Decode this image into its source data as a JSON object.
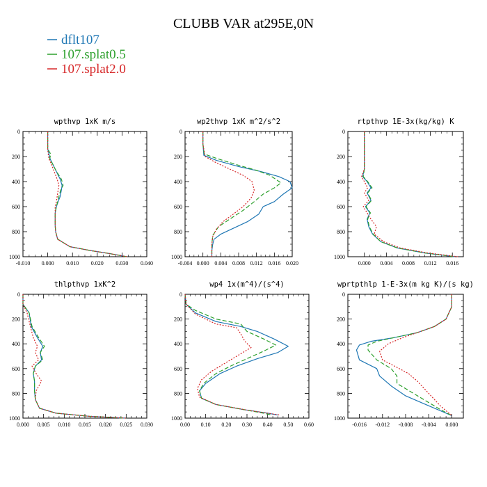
{
  "figure": {
    "title": "CLUBB VAR at295E,0N"
  },
  "legend": [
    {
      "label": "dflt107",
      "color": "#1f77b4",
      "dash": ""
    },
    {
      "label": "107.splat0.5",
      "color": "#2ca02c",
      "dash": "6,3"
    },
    {
      "label": "107.splat2.0",
      "color": "#d62728",
      "dash": "2,2"
    }
  ],
  "chart_data": [
    {
      "type": "line",
      "title": "wpthvp  1xK m/s",
      "xlim": [
        -0.01,
        0.04
      ],
      "xticks": [
        -0.01,
        0.0,
        0.01,
        0.02,
        0.03,
        0.04
      ],
      "xtick_labels": [
        "-0.010",
        "0.000",
        "0.010",
        "0.020",
        "0.030",
        "0.040"
      ],
      "ylim": [
        1000,
        0
      ],
      "yticks": [
        0,
        200,
        400,
        600,
        800,
        1000
      ],
      "ytick_labels": [
        "0",
        "200",
        "400",
        "600",
        "800",
        "1000"
      ],
      "series": [
        {
          "name": "dflt107",
          "x": [
            0.0,
            0.0,
            0.0,
            0.0005,
            0.001,
            0.002,
            0.003,
            0.004,
            0.005,
            0.0058,
            0.0055,
            0.005,
            0.0042,
            0.0035,
            0.003,
            0.003,
            0.003,
            0.0032,
            0.004,
            0.009,
            0.017,
            0.025,
            0.032
          ],
          "y": [
            0,
            100,
            140,
            180,
            220,
            260,
            300,
            340,
            380,
            430,
            470,
            520,
            560,
            600,
            650,
            700,
            750,
            800,
            860,
            920,
            950,
            975,
            1000
          ]
        },
        {
          "name": "107.splat0.5",
          "x": [
            0.0,
            0.0,
            0.0,
            0.0012,
            0.0008,
            0.002,
            0.003,
            0.0042,
            0.0055,
            0.0062,
            0.0052,
            0.0045,
            0.004,
            0.0035,
            0.003,
            0.003,
            0.003,
            0.0032,
            0.004,
            0.009,
            0.017,
            0.025,
            0.032
          ],
          "y": [
            0,
            100,
            140,
            180,
            220,
            260,
            300,
            340,
            380,
            430,
            470,
            520,
            560,
            600,
            650,
            700,
            750,
            800,
            860,
            920,
            950,
            975,
            1000
          ]
        },
        {
          "name": "107.splat2.0",
          "x": [
            0.0,
            0.0,
            0.0,
            0.0002,
            0.0005,
            0.0015,
            0.0022,
            0.003,
            0.0038,
            0.0045,
            0.0042,
            0.0038,
            0.0035,
            0.003,
            0.003,
            0.003,
            0.003,
            0.0032,
            0.004,
            0.009,
            0.017,
            0.025,
            0.032
          ],
          "y": [
            0,
            100,
            140,
            180,
            220,
            260,
            300,
            340,
            380,
            430,
            470,
            520,
            560,
            600,
            650,
            700,
            750,
            800,
            860,
            920,
            950,
            975,
            1000
          ]
        }
      ]
    },
    {
      "type": "line",
      "title": "wp2thvp  1xK m^2/s^2",
      "xlim": [
        -0.004,
        0.02
      ],
      "xticks": [
        -0.004,
        0.0,
        0.004,
        0.008,
        0.012,
        0.016,
        0.02
      ],
      "xtick_labels": [
        "-0.004",
        "0.000",
        "0.004",
        "0.008",
        "0.012",
        "0.016",
        "0.020"
      ],
      "ylim": [
        1000,
        0
      ],
      "yticks": [
        0,
        200,
        400,
        600,
        800,
        1000
      ],
      "ytick_labels": [
        "0",
        "200",
        "400",
        "600",
        "800",
        "1000"
      ],
      "series": [
        {
          "name": "dflt107",
          "x": [
            0.0,
            0.0,
            0.0002,
            0.003,
            0.008,
            0.013,
            0.017,
            0.0195,
            0.02,
            0.018,
            0.016,
            0.0135,
            0.0125,
            0.01,
            0.007,
            0.004,
            0.0025,
            0.0022,
            0.002,
            0.002
          ],
          "y": [
            0,
            100,
            190,
            230,
            280,
            320,
            360,
            400,
            450,
            500,
            560,
            600,
            660,
            720,
            770,
            820,
            860,
            900,
            950,
            1000
          ]
        },
        {
          "name": "107.splat0.5",
          "x": [
            0.0,
            0.0,
            0.0003,
            0.0035,
            0.008,
            0.012,
            0.015,
            0.0175,
            0.016,
            0.0135,
            0.0115,
            0.009,
            0.006,
            0.0035,
            0.0022,
            0.002,
            0.002
          ],
          "y": [
            0,
            100,
            180,
            220,
            270,
            310,
            350,
            410,
            450,
            500,
            560,
            630,
            700,
            760,
            830,
            900,
            1000
          ]
        },
        {
          "name": "107.splat2.0",
          "x": [
            0.0,
            0.0,
            0.0005,
            0.003,
            0.006,
            0.009,
            0.011,
            0.0115,
            0.0108,
            0.009,
            0.0068,
            0.0045,
            0.003,
            0.0022,
            0.002,
            0.002
          ],
          "y": [
            0,
            100,
            200,
            250,
            300,
            350,
            400,
            470,
            530,
            600,
            660,
            720,
            780,
            840,
            900,
            1000
          ]
        }
      ]
    },
    {
      "type": "line",
      "title": "rtpthvp  1E-3x(kg/kg) K",
      "xlim": [
        -0.003,
        0.018
      ],
      "xticks": [
        0.0,
        0.004,
        0.008,
        0.012,
        0.016
      ],
      "xtick_labels": [
        "0.000",
        "0.004",
        "0.008",
        "0.012",
        "0.016"
      ],
      "ylim": [
        1000,
        0
      ],
      "yticks": [
        0,
        200,
        400,
        600,
        800,
        1000
      ],
      "ytick_labels": [
        "0",
        "200",
        "400",
        "600",
        "800",
        "1000"
      ],
      "series": [
        {
          "name": "dflt107",
          "x": [
            0.0,
            0.0,
            0.0,
            -0.0003,
            0.0005,
            0.0012,
            0.0005,
            0.0012,
            0.0002,
            0.001,
            0.0005,
            0.0008,
            0.0015,
            0.003,
            0.006,
            0.011,
            0.0165
          ],
          "y": [
            0,
            200,
            300,
            360,
            400,
            450,
            490,
            550,
            600,
            650,
            700,
            760,
            820,
            880,
            930,
            970,
            1000
          ]
        },
        {
          "name": "107.splat0.5",
          "x": [
            0.0,
            0.0,
            0.0,
            -0.0002,
            0.0006,
            0.0014,
            0.0006,
            0.0013,
            0.0003,
            0.0011,
            0.0006,
            0.0009,
            0.0016,
            0.003,
            0.006,
            0.011,
            0.0165
          ],
          "y": [
            0,
            200,
            300,
            360,
            400,
            450,
            490,
            550,
            600,
            650,
            700,
            760,
            820,
            880,
            930,
            970,
            1000
          ]
        },
        {
          "name": "107.splat2.0",
          "x": [
            0.0,
            0.0,
            0.0,
            -0.0005,
            0.0,
            0.0006,
            0.0,
            0.0008,
            -0.0002,
            0.0005,
            0.0012,
            0.0022,
            0.0018,
            0.0035,
            0.0065,
            0.0115,
            0.017
          ],
          "y": [
            0,
            200,
            300,
            360,
            400,
            450,
            490,
            550,
            600,
            650,
            700,
            760,
            820,
            880,
            930,
            970,
            1000
          ]
        }
      ]
    },
    {
      "type": "line",
      "title": "thlpthvp  1xK^2",
      "xlim": [
        0.0,
        0.03
      ],
      "xticks": [
        0.0,
        0.005,
        0.01,
        0.015,
        0.02,
        0.025,
        0.03
      ],
      "xtick_labels": [
        "0.000",
        "0.005",
        "0.010",
        "0.015",
        "0.020",
        "0.025",
        "0.030"
      ],
      "ylim": [
        1000,
        0
      ],
      "yticks": [
        0,
        200,
        400,
        600,
        800,
        1000
      ],
      "ytick_labels": [
        "0",
        "200",
        "400",
        "600",
        "800",
        "1000"
      ],
      "series": [
        {
          "name": "dflt107",
          "x": [
            0.0,
            0.0,
            0.0015,
            0.002,
            0.0035,
            0.0048,
            0.0042,
            0.0045,
            0.003,
            0.0025,
            0.0028,
            0.0028,
            0.003,
            0.004,
            0.008,
            0.016,
            0.025
          ],
          "y": [
            0,
            80,
            150,
            260,
            350,
            420,
            470,
            530,
            580,
            640,
            700,
            780,
            850,
            920,
            960,
            985,
            1000
          ]
        },
        {
          "name": "107.splat0.5",
          "x": [
            0.0,
            0.0,
            0.0015,
            0.0022,
            0.0038,
            0.0052,
            0.0042,
            0.0048,
            0.003,
            0.0025,
            0.0028,
            0.0028,
            0.003,
            0.004,
            0.008,
            0.016,
            0.025
          ],
          "y": [
            0,
            80,
            150,
            260,
            350,
            420,
            470,
            530,
            580,
            640,
            700,
            780,
            850,
            920,
            960,
            985,
            1000
          ]
        },
        {
          "name": "107.splat2.0",
          "x": [
            0.0,
            0.0,
            0.001,
            0.0018,
            0.0025,
            0.0035,
            0.003,
            0.0038,
            0.0022,
            0.0032,
            0.0045,
            0.0032,
            0.003,
            0.004,
            0.008,
            0.016,
            0.025
          ],
          "y": [
            0,
            80,
            150,
            260,
            350,
            420,
            470,
            530,
            580,
            640,
            700,
            780,
            850,
            920,
            960,
            985,
            1000
          ]
        }
      ]
    },
    {
      "type": "line",
      "title": "wp4  1x(m^4)/(s^4)",
      "xlim": [
        0.0,
        0.6
      ],
      "xticks": [
        0.0,
        0.1,
        0.2,
        0.3,
        0.4,
        0.5,
        0.6
      ],
      "xtick_labels": [
        "0.00",
        "0.10",
        "0.20",
        "0.30",
        "0.40",
        "0.50",
        "0.60"
      ],
      "ylim": [
        1000,
        0
      ],
      "yticks": [
        0,
        200,
        400,
        600,
        800,
        1000
      ],
      "ytick_labels": [
        "0",
        "200",
        "400",
        "600",
        "800",
        "1000"
      ],
      "series": [
        {
          "name": "dflt107",
          "x": [
            0.0,
            0.005,
            0.05,
            0.15,
            0.27,
            0.35,
            0.43,
            0.5,
            0.45,
            0.35,
            0.25,
            0.17,
            0.1,
            0.07,
            0.08,
            0.15,
            0.28,
            0.4,
            0.45
          ],
          "y": [
            0,
            80,
            150,
            220,
            260,
            300,
            360,
            420,
            470,
            520,
            580,
            640,
            720,
            780,
            840,
            890,
            930,
            960,
            975
          ]
        },
        {
          "name": "107.splat0.5",
          "x": [
            0.0,
            0.005,
            0.05,
            0.15,
            0.27,
            0.3,
            0.38,
            0.44,
            0.38,
            0.3,
            0.22,
            0.15,
            0.09,
            0.07,
            0.08,
            0.15,
            0.28,
            0.38,
            0.42
          ],
          "y": [
            0,
            80,
            130,
            200,
            240,
            300,
            360,
            410,
            460,
            520,
            580,
            640,
            720,
            780,
            840,
            890,
            930,
            960,
            975
          ]
        },
        {
          "name": "107.splat2.0",
          "x": [
            0.0,
            0.005,
            0.05,
            0.15,
            0.25,
            0.27,
            0.29,
            0.32,
            0.27,
            0.2,
            0.13,
            0.08,
            0.06,
            0.07,
            0.15,
            0.3,
            0.42,
            0.46
          ],
          "y": [
            0,
            80,
            160,
            240,
            270,
            320,
            380,
            430,
            480,
            550,
            620,
            690,
            760,
            830,
            890,
            935,
            965,
            975
          ]
        }
      ]
    },
    {
      "type": "line",
      "title": "wprtpthlp  1-E-3x(m kg K)/(s kg)",
      "xlim": [
        -0.018,
        0.002
      ],
      "xticks": [
        -0.016,
        -0.012,
        -0.008,
        -0.004,
        0.0
      ],
      "xtick_labels": [
        "-0.016",
        "-0.012",
        "-0.008",
        "-0.004",
        "0.000"
      ],
      "ylim": [
        1000,
        0
      ],
      "yticks": [
        0,
        200,
        400,
        600,
        800,
        1000
      ],
      "ytick_labels": [
        "0",
        "200",
        "400",
        "600",
        "800",
        "1000"
      ],
      "series": [
        {
          "name": "dflt107",
          "x": [
            0.0,
            0.0,
            -0.001,
            -0.003,
            -0.006,
            -0.01,
            -0.014,
            -0.016,
            -0.0165,
            -0.016,
            -0.013,
            -0.0125,
            -0.0105,
            -0.008,
            -0.005,
            -0.002,
            0.0
          ],
          "y": [
            0,
            100,
            200,
            260,
            310,
            350,
            380,
            410,
            450,
            530,
            600,
            660,
            740,
            820,
            880,
            940,
            980
          ]
        },
        {
          "name": "107.splat0.5",
          "x": [
            0.0,
            0.0,
            -0.001,
            -0.003,
            -0.006,
            -0.01,
            -0.013,
            -0.0145,
            -0.0145,
            -0.013,
            -0.0105,
            -0.0095,
            -0.0095,
            -0.007,
            -0.0045,
            -0.002,
            0.0
          ],
          "y": [
            0,
            100,
            200,
            260,
            310,
            350,
            380,
            410,
            450,
            530,
            600,
            660,
            720,
            790,
            860,
            930,
            980
          ]
        },
        {
          "name": "107.splat2.0",
          "x": [
            0.0,
            0.0,
            -0.001,
            -0.003,
            -0.006,
            -0.0085,
            -0.011,
            -0.0125,
            -0.012,
            -0.0095,
            -0.0075,
            -0.006,
            -0.004,
            -0.002,
            0.0
          ],
          "y": [
            0,
            100,
            200,
            260,
            310,
            350,
            400,
            460,
            530,
            590,
            640,
            700,
            800,
            900,
            980
          ]
        }
      ]
    }
  ]
}
